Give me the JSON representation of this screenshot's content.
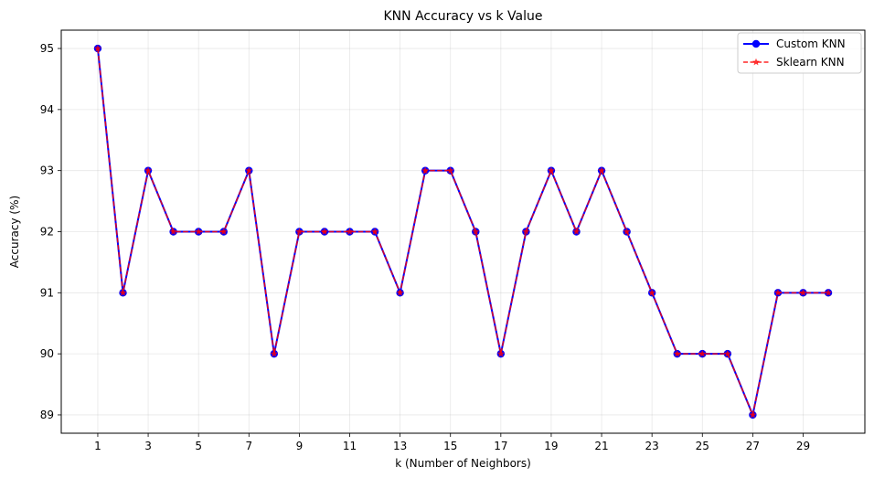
{
  "chart_data": {
    "type": "line",
    "title": "KNN Accuracy vs k Value",
    "xlabel": "k (Number of Neighbors)",
    "ylabel": "Accuracy (%)",
    "x": [
      1,
      2,
      3,
      4,
      5,
      6,
      7,
      8,
      9,
      10,
      11,
      12,
      13,
      14,
      15,
      16,
      17,
      18,
      19,
      20,
      21,
      22,
      23,
      24,
      25,
      26,
      27,
      28,
      29,
      30
    ],
    "xticks": [
      1,
      3,
      5,
      7,
      9,
      11,
      13,
      15,
      17,
      19,
      21,
      23,
      25,
      27,
      29
    ],
    "yticks": [
      89,
      90,
      91,
      92,
      93,
      94,
      95
    ],
    "xlim": [
      -0.45,
      31.45
    ],
    "ylim": [
      88.7,
      95.3
    ],
    "grid": true,
    "legend_position": "top-right",
    "series": [
      {
        "name": "Custom KNN",
        "color": "#0000ff",
        "line_style": "solid",
        "marker": "circle",
        "values": [
          95,
          91,
          93,
          92,
          92,
          92,
          93,
          90,
          92,
          92,
          92,
          92,
          91,
          93,
          93,
          92,
          90,
          92,
          93,
          92,
          93,
          92,
          91,
          90,
          90,
          90,
          89,
          91,
          91,
          91
        ]
      },
      {
        "name": "Sklearn KNN",
        "color": "#ff0000",
        "line_style": "dashed",
        "marker": "star",
        "values": [
          95,
          91,
          93,
          92,
          92,
          92,
          93,
          90,
          92,
          92,
          92,
          92,
          91,
          93,
          93,
          92,
          90,
          92,
          93,
          92,
          93,
          92,
          91,
          90,
          90,
          90,
          89,
          91,
          91,
          91
        ]
      }
    ]
  }
}
